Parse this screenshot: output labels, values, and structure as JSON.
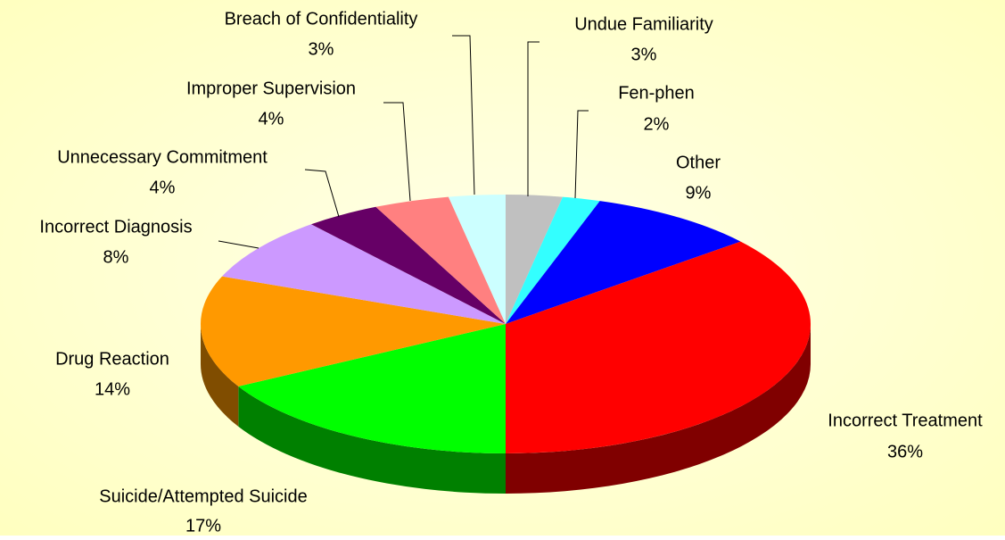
{
  "chart_data": {
    "type": "pie",
    "categories": [
      "Undue Familiarity",
      "Fen-phen",
      "Other",
      "Incorrect Treatment",
      "Suicide/Attempted Suicide",
      "Drug Reaction",
      "Incorrect Diagnosis",
      "Unnecessary Commitment",
      "Improper Supervision",
      "Breach of Confidentiality"
    ],
    "values": [
      3,
      2,
      9,
      36,
      17,
      14,
      8,
      4,
      4,
      3
    ],
    "value_labels": [
      "3%",
      "2%",
      "9%",
      "36%",
      "17%",
      "14%",
      "8%",
      "4%",
      "4%",
      "3%"
    ],
    "colors": [
      "#c0c0c0",
      "#33ffff",
      "#0000ff",
      "#ff0000",
      "#00ff00",
      "#ff9900",
      "#cc99ff",
      "#660066",
      "#ff8080",
      "#ccffff"
    ]
  }
}
